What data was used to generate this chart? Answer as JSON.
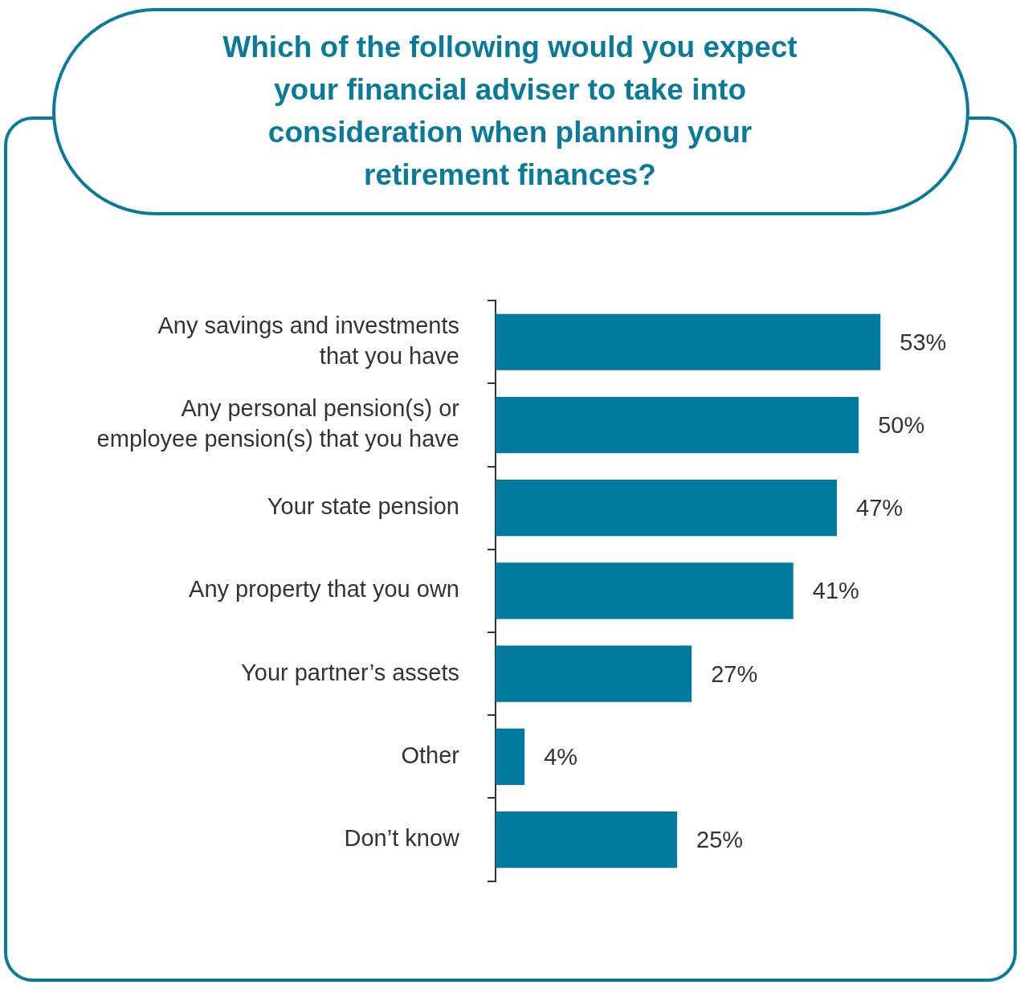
{
  "chart_data": {
    "type": "bar",
    "orientation": "horizontal",
    "title": "Which of the following would you expect\nyour financial adviser to take into\nconsideration when planning your\nretirement finances?",
    "categories": [
      "Any savings and investments\nthat you have",
      "Any personal pension(s) or\nemployee pension(s) that you have",
      "Your state pension",
      "Any property that you own",
      "Your partner’s assets",
      "Other",
      "Don’t know"
    ],
    "values": [
      53,
      50,
      47,
      41,
      27,
      4,
      25
    ],
    "value_labels": [
      "53%",
      "50%",
      "47%",
      "41%",
      "27%",
      "4%",
      "25%"
    ],
    "color": "#007a9e",
    "tick_labels": "y",
    "grid": false,
    "legend": false
  }
}
